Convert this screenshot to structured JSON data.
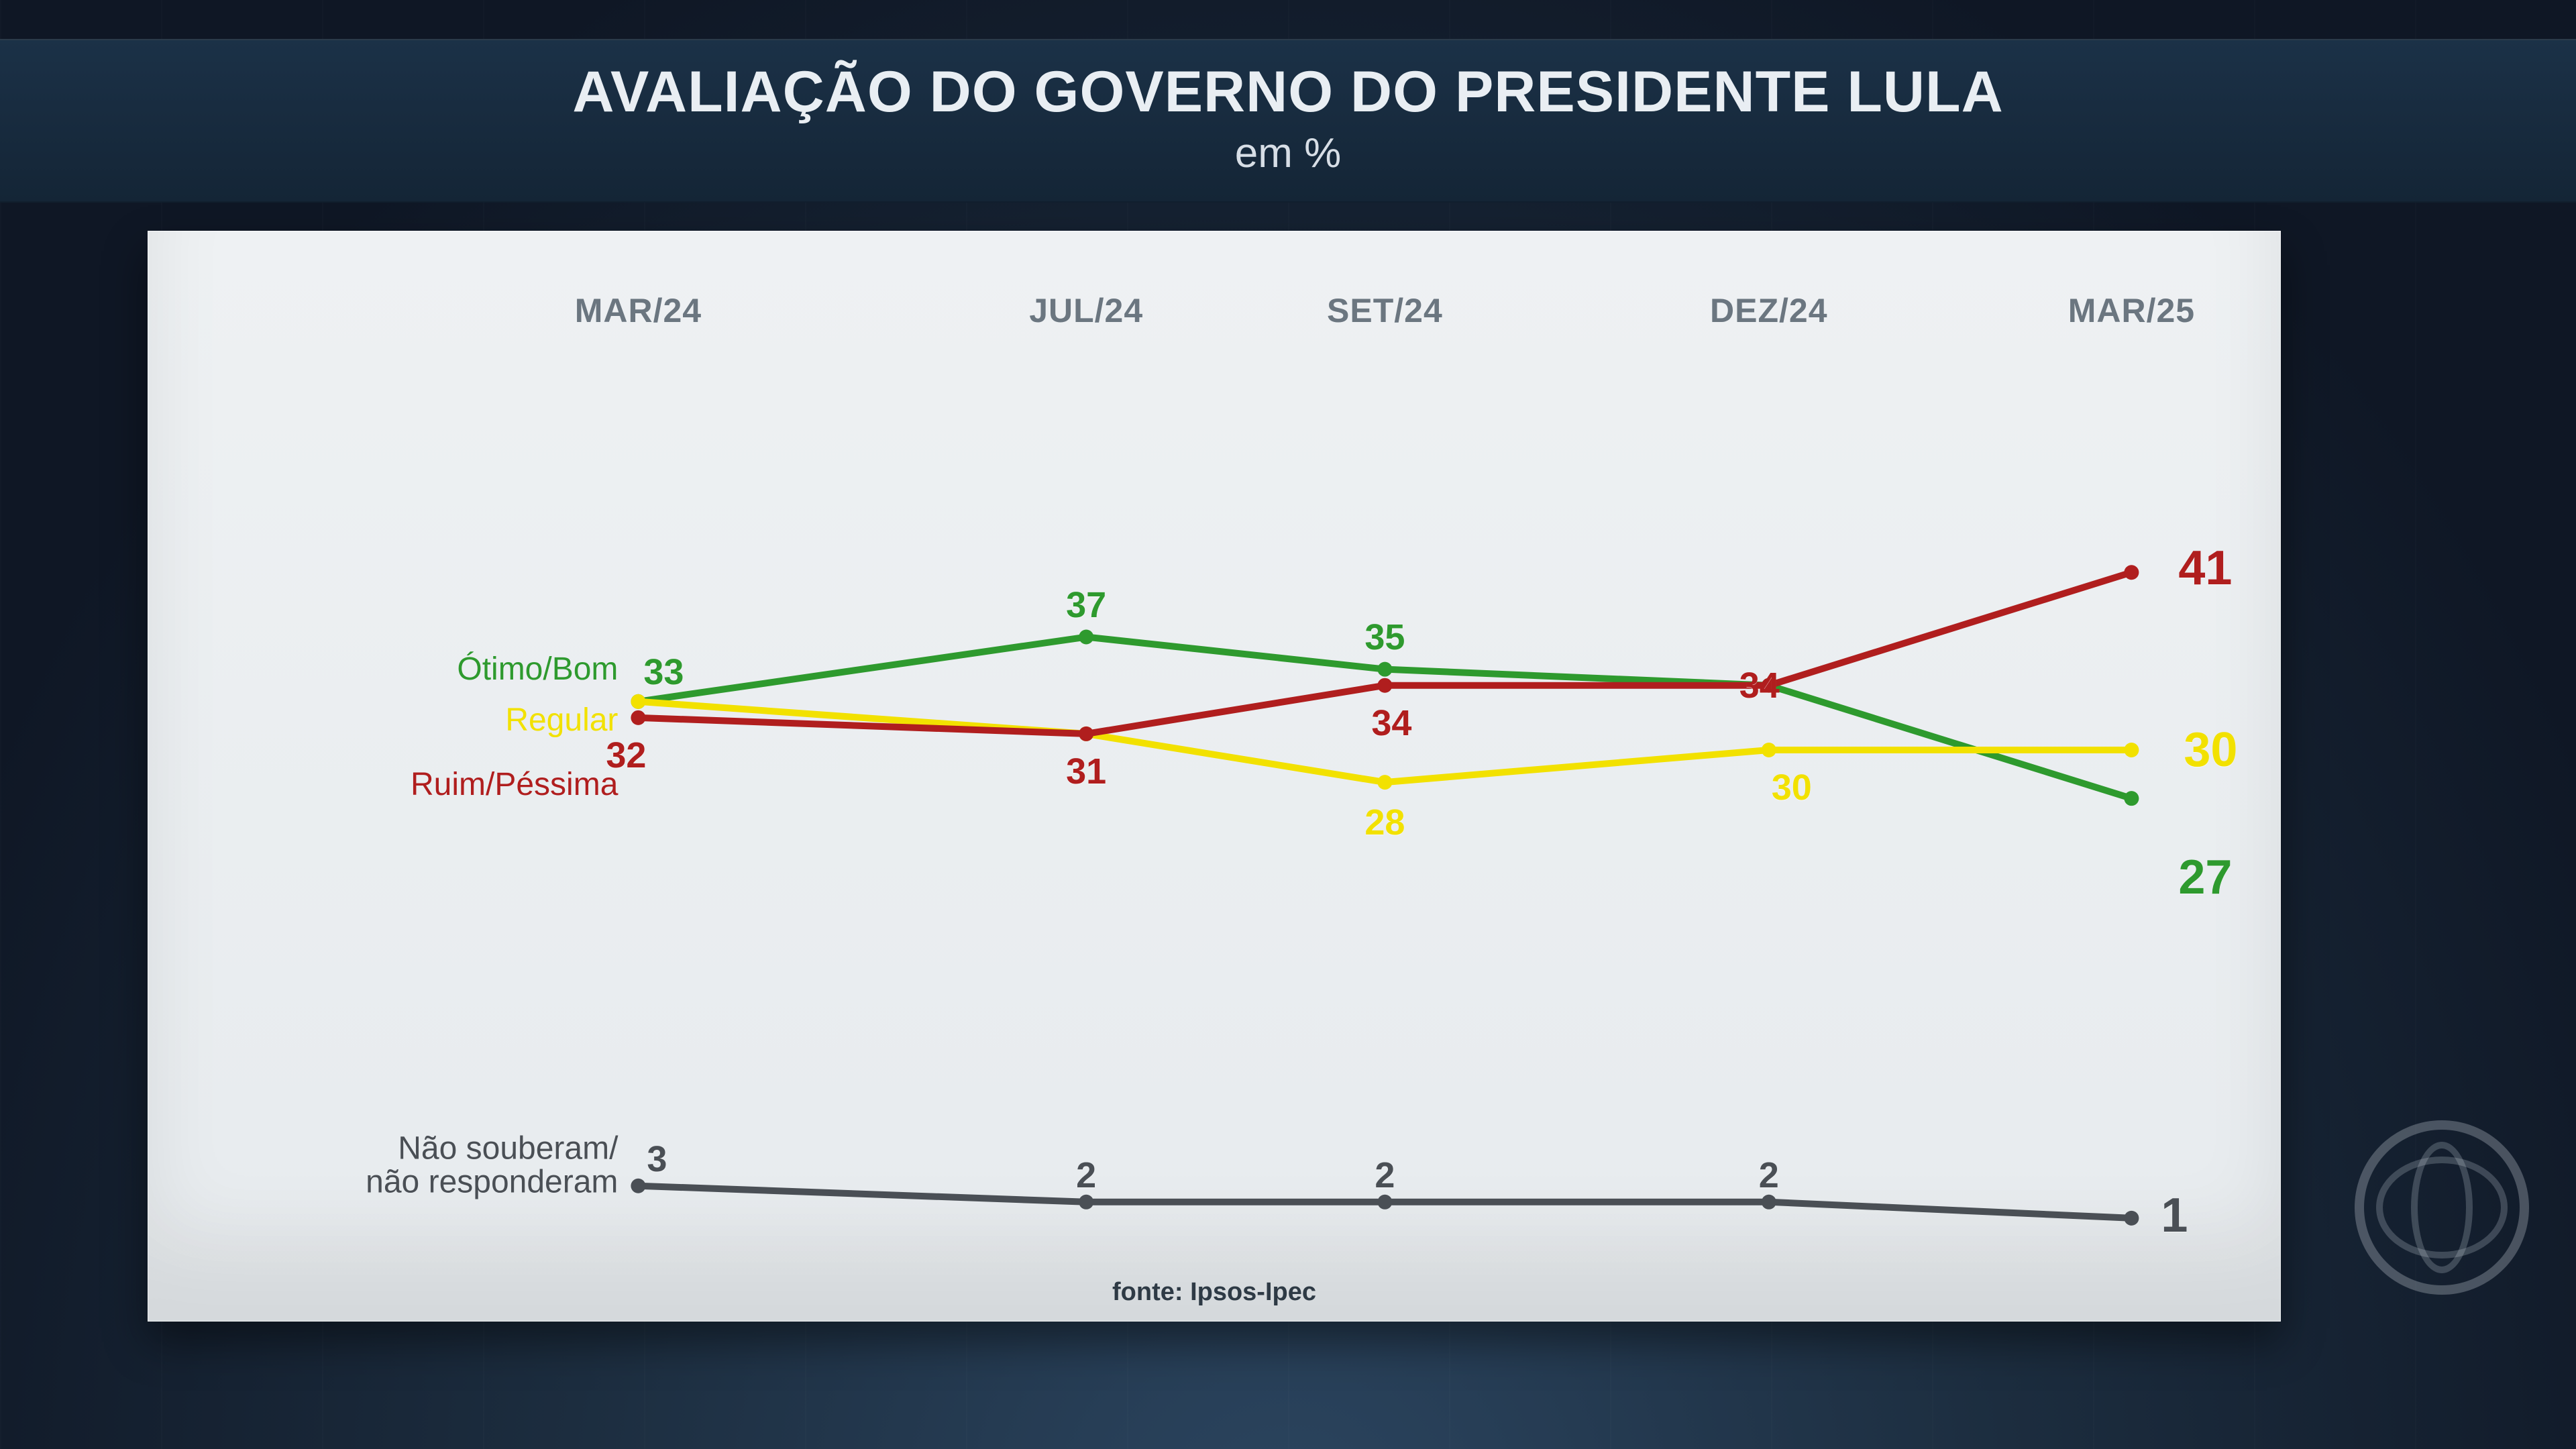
{
  "header": {
    "title": "AVALIAÇÃO DO GOVERNO DO PRESIDENTE LULA",
    "subtitle": "em %"
  },
  "chart": {
    "type": "line",
    "background_color": "#eceff1",
    "stage_background": "#12223a",
    "panel_shadow": "rgba(0,0,0,0.45)",
    "x_categories": [
      "MAR/24",
      "JUL/24",
      "SET/24",
      "DEZ/24",
      "MAR/25"
    ],
    "x_positions_pct": [
      23,
      44,
      58,
      76,
      93
    ],
    "xlabel_color": "#6b7680",
    "xlabel_fontsize": 50,
    "y_domain": [
      0,
      50
    ],
    "y_top_pct": 18,
    "y_bottom_pct": 92,
    "line_width": 10,
    "marker_radius": 11,
    "value_fontsize": 54,
    "end_value_fontsize": 72,
    "series": [
      {
        "key": "otimo_bom",
        "label": "Ótimo/Bom",
        "color": "#2e9a2e",
        "values": [
          33,
          37,
          35,
          34,
          27
        ],
        "value_label_dy": [
          -44,
          -48,
          -48,
          0,
          118
        ],
        "value_label_dx": [
          38,
          0,
          0,
          0,
          110
        ],
        "show_value": [
          true,
          true,
          true,
          false,
          true
        ],
        "label_anchor_y": 33,
        "label_anchor_dy": -48
      },
      {
        "key": "regular",
        "label": "Regular",
        "color": "#f2e100",
        "values": [
          33,
          31,
          28,
          30,
          30
        ],
        "value_label_dy": [
          0,
          0,
          60,
          56,
          0
        ],
        "value_label_dx": [
          0,
          0,
          0,
          34,
          118
        ],
        "show_value": [
          false,
          false,
          true,
          true,
          true
        ],
        "label_anchor_y": 33,
        "label_anchor_dy": 28
      },
      {
        "key": "ruim_pessima",
        "label": "Ruim/Péssima",
        "color": "#b01e1e",
        "values": [
          32,
          31,
          34,
          34,
          41
        ],
        "value_label_dy": [
          56,
          56,
          56,
          0,
          -6
        ],
        "value_label_dx": [
          -18,
          0,
          10,
          -14,
          110
        ],
        "show_value": [
          true,
          true,
          true,
          true,
          true
        ],
        "label_anchor_y": 32,
        "label_anchor_dy": 100
      },
      {
        "key": "nao_sabe",
        "label": "Não souberam/\nnão responderam",
        "color": "#4a4f55",
        "values": [
          3,
          2,
          2,
          2,
          1
        ],
        "value_label_dy": [
          -40,
          -40,
          -40,
          -40,
          -4
        ],
        "value_label_dx": [
          28,
          0,
          0,
          0,
          64
        ],
        "show_value": [
          true,
          true,
          true,
          true,
          true
        ],
        "label_anchor_y": 3,
        "label_anchor_dy": -30
      }
    ]
  },
  "footer": {
    "source_prefix": "fonte: ",
    "source": "Ipsos-Ipec"
  }
}
